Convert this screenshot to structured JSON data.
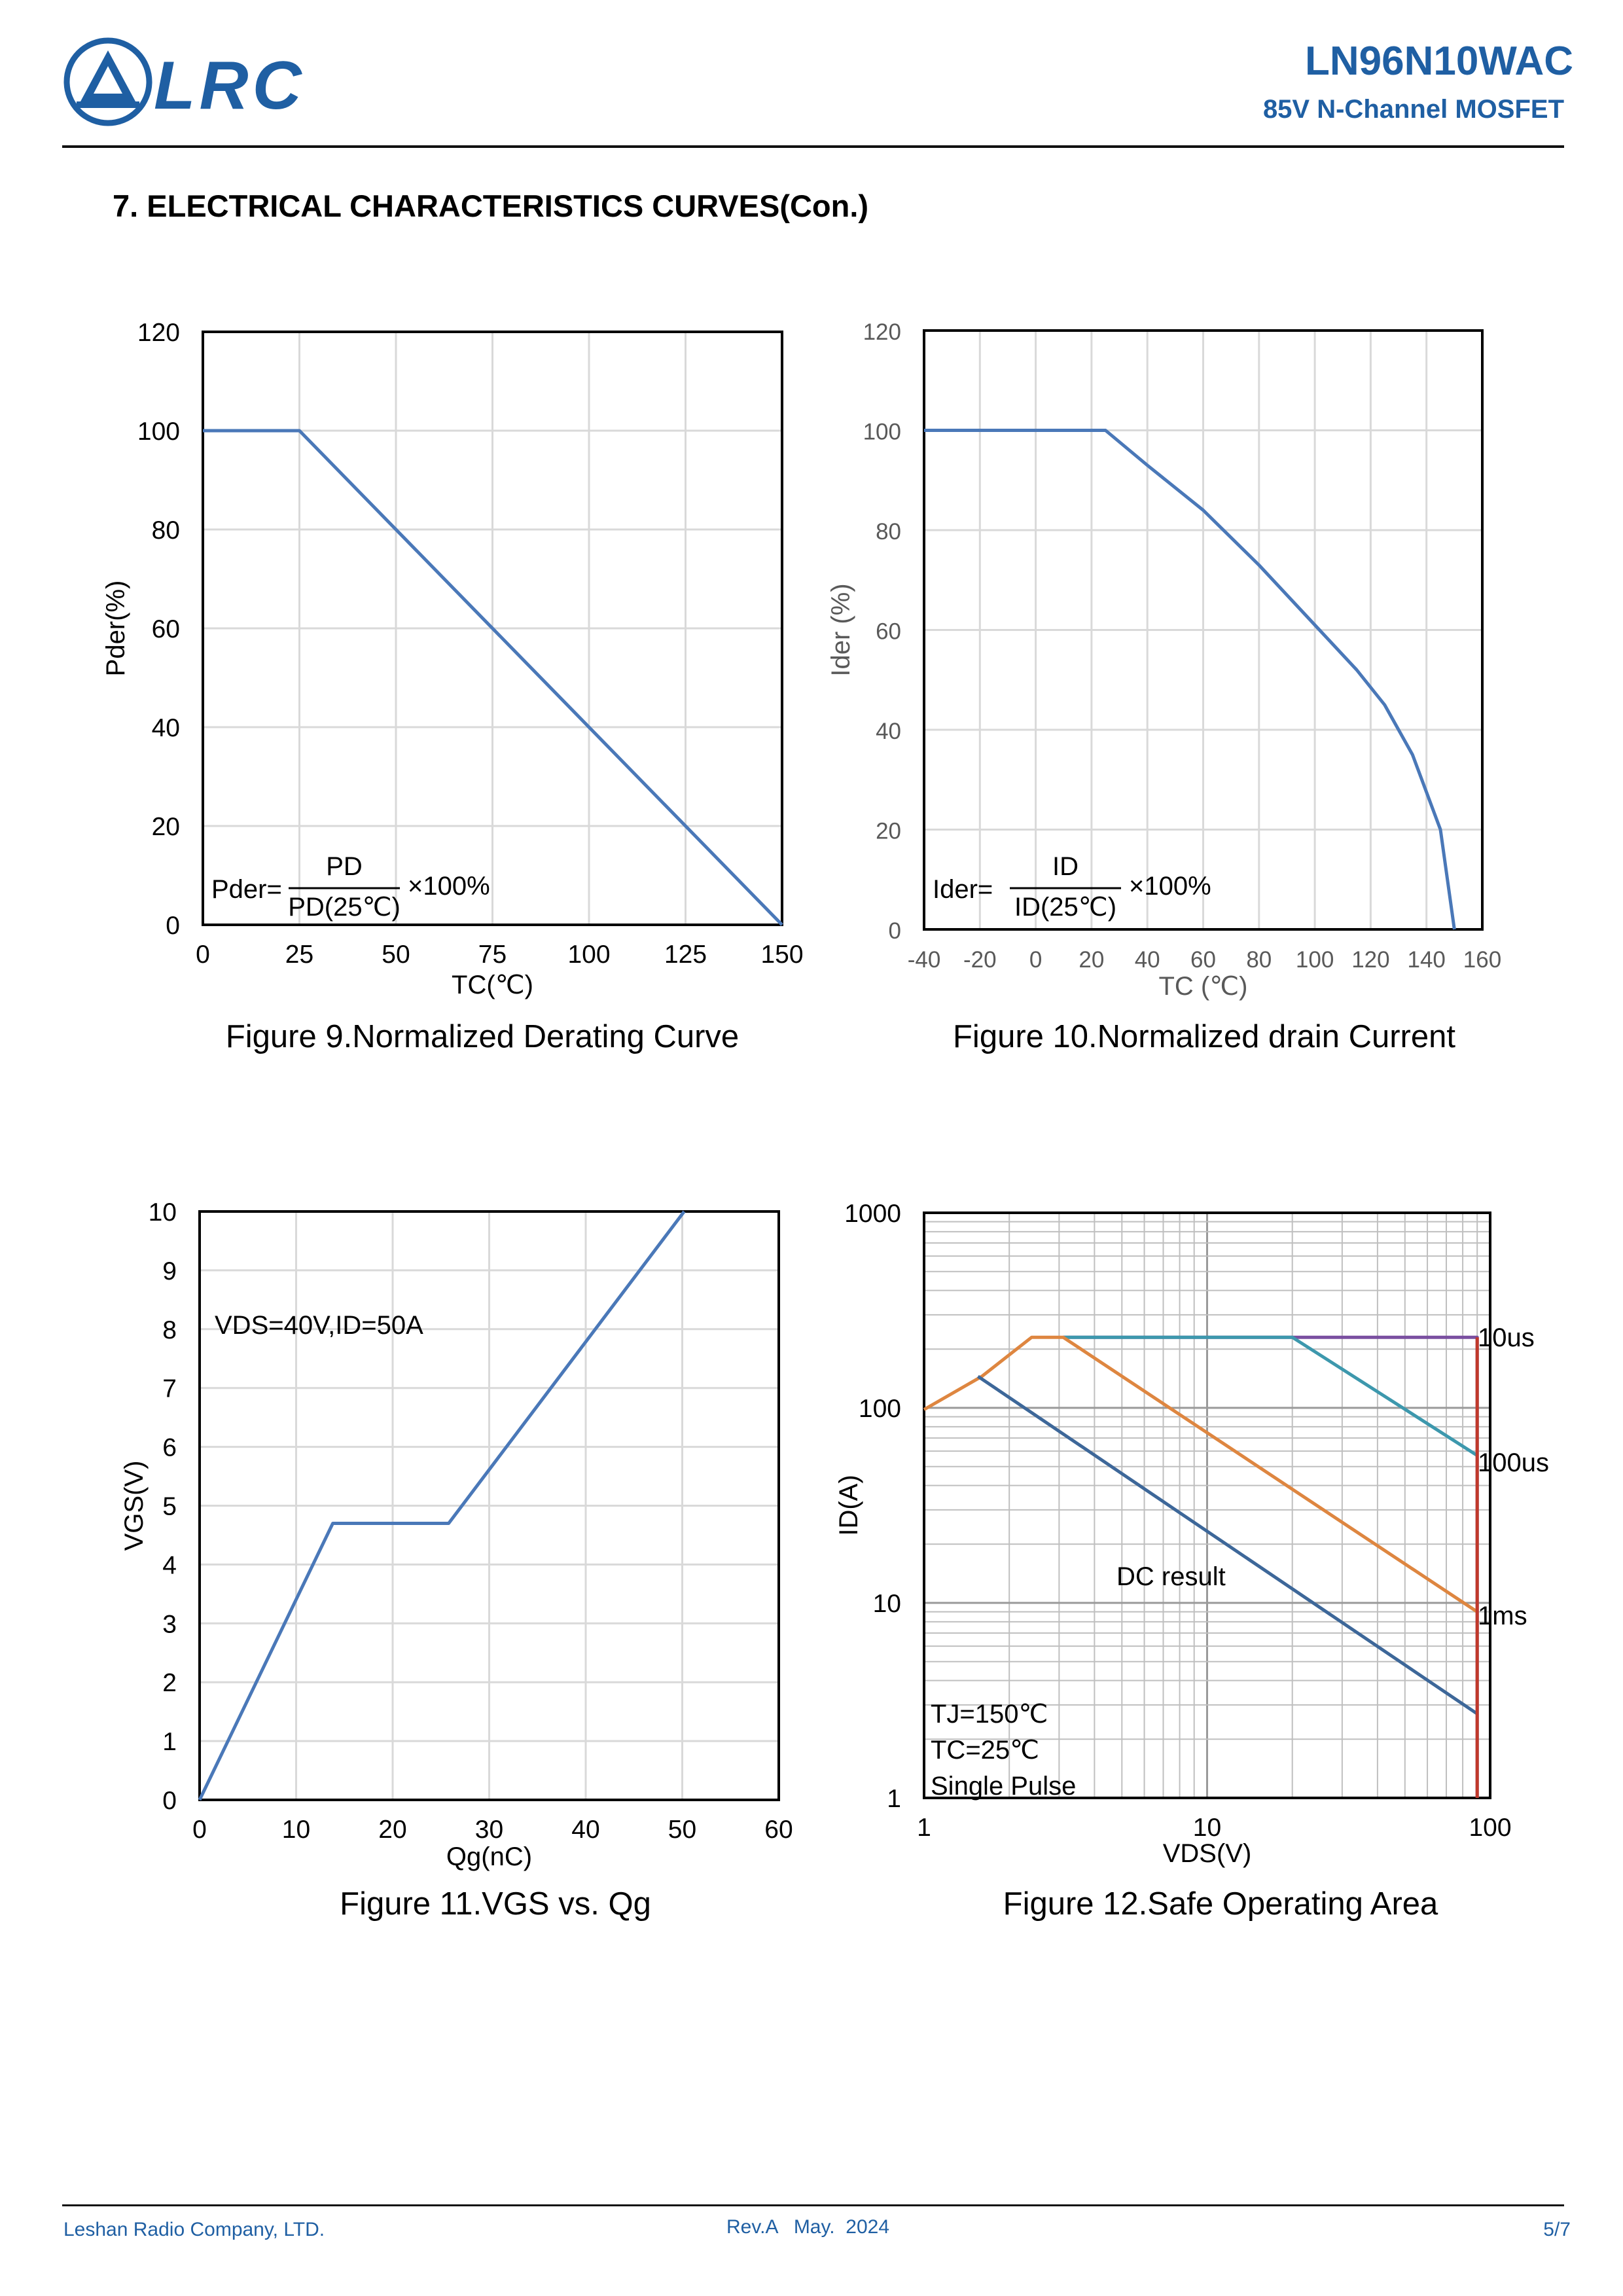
{
  "header": {
    "logo_text": "LRC",
    "part_number": "LN96N10WAC",
    "device_description": "85V N-Channel MOSFET"
  },
  "section_title": "7. ELECTRICAL CHARACTERISTICS CURVES(Con.)",
  "footer": {
    "company": "Leshan Radio Company, LTD.",
    "revision": "Rev.A   May.  2024",
    "page": "5/7"
  },
  "colors": {
    "brand": "#1f5fa3",
    "line_blue": "#4a78b8",
    "line_dark_blue": "#3d6799",
    "line_orange": "#de8640",
    "line_teal": "#3d98ad",
    "line_purple": "#7a4fa0",
    "line_red": "#c0392b",
    "grid": "#d9d9d9"
  },
  "charts": {
    "fig9": {
      "caption": "Figure 9.Normalized Derating Curve",
      "xlabel": "TC(℃)",
      "ylabel": "Pder(%)",
      "formula": {
        "lhs": "Pder=",
        "num": "PD",
        "den": "PD(25℃)",
        "mult": "×100%"
      }
    },
    "fig10": {
      "caption": "Figure 10.Normalized drain Current",
      "xlabel": "TC (℃)",
      "ylabel": "Ider (%)",
      "formula": {
        "lhs": "Ider=",
        "num": "ID",
        "den": "ID(25℃)",
        "mult": "×100%"
      }
    },
    "fig11": {
      "caption": "Figure 11.VGS vs. Qg",
      "xlabel": "Qg(nC)",
      "ylabel": "VGS(V)",
      "annotation": "VDS=40V,ID=50A"
    },
    "fig12": {
      "caption": "Figure 12.Safe Operating Area",
      "xlabel": "VDS(V)",
      "ylabel": "ID(A)",
      "dc_label": "DC result",
      "conditions": [
        "TJ=150℃",
        "TC=25℃",
        "Single Pulse"
      ]
    }
  },
  "chart_data": [
    {
      "id": "fig9",
      "type": "line",
      "title": "Figure 9.Normalized Derating Curve",
      "xlabel": "TC(℃)",
      "ylabel": "Pder(%)",
      "xlim": [
        0,
        150
      ],
      "ylim": [
        0,
        120
      ],
      "xticks": [
        0,
        25,
        50,
        75,
        100,
        125,
        150
      ],
      "yticks": [
        0,
        20,
        40,
        60,
        80,
        100,
        120
      ],
      "grid": true,
      "series": [
        {
          "x": [
            0,
            25,
            150
          ],
          "y": [
            100,
            100,
            0
          ]
        }
      ]
    },
    {
      "id": "fig10",
      "type": "line",
      "title": "Figure 10.Normalized drain Current",
      "xlabel": "TC (℃)",
      "ylabel": "Ider (%)",
      "xlim": [
        -40,
        160
      ],
      "ylim": [
        0,
        120
      ],
      "xticks": [
        -40,
        -20,
        0,
        20,
        40,
        60,
        80,
        100,
        120,
        140,
        160
      ],
      "yticks": [
        0,
        20,
        40,
        60,
        80,
        100,
        120
      ],
      "grid": true,
      "series": [
        {
          "x": [
            -40,
            25,
            40,
            60,
            80,
            100,
            115,
            125,
            135,
            145,
            150
          ],
          "y": [
            100,
            100,
            93,
            84,
            73,
            61,
            52,
            45,
            35,
            20,
            0
          ]
        }
      ]
    },
    {
      "id": "fig11",
      "type": "line",
      "title": "Figure 11.VGS vs. Qg",
      "xlabel": "Qg(nC)",
      "ylabel": "VGS(V)",
      "xlim": [
        0,
        60
      ],
      "ylim": [
        0,
        10
      ],
      "xticks": [
        0,
        10,
        20,
        30,
        40,
        50,
        60
      ],
      "yticks": [
        0,
        1,
        2,
        3,
        4,
        5,
        6,
        7,
        8,
        9,
        10
      ],
      "grid": true,
      "series": [
        {
          "x": [
            0,
            13.8,
            25.8,
            50.2
          ],
          "y": [
            0,
            4.7,
            4.7,
            10
          ]
        }
      ]
    },
    {
      "id": "fig12",
      "type": "line",
      "title": "Figure 12.Safe Operating Area",
      "xlabel": "VDS(V)",
      "ylabel": "ID(A)",
      "xscale": "log",
      "yscale": "log",
      "xlim": [
        1,
        100
      ],
      "ylim": [
        1,
        1000
      ],
      "xticks": [
        1,
        10,
        100
      ],
      "yticks": [
        1,
        10,
        100,
        1000
      ],
      "grid": true,
      "series": [
        {
          "name": "10us",
          "x": [
            3.1,
            90,
            90
          ],
          "y": [
            230,
            230,
            1
          ]
        },
        {
          "name": "100us",
          "x": [
            3.1,
            20,
            90
          ],
          "y": [
            230,
            230,
            57
          ]
        },
        {
          "name": "1ms",
          "x": [
            1,
            1.6,
            2.4,
            3.1,
            90
          ],
          "y": [
            98,
            145,
            230,
            230,
            9
          ]
        },
        {
          "name": "DC result",
          "x": [
            1.55,
            90
          ],
          "y": [
            145,
            2.7
          ]
        }
      ]
    }
  ]
}
